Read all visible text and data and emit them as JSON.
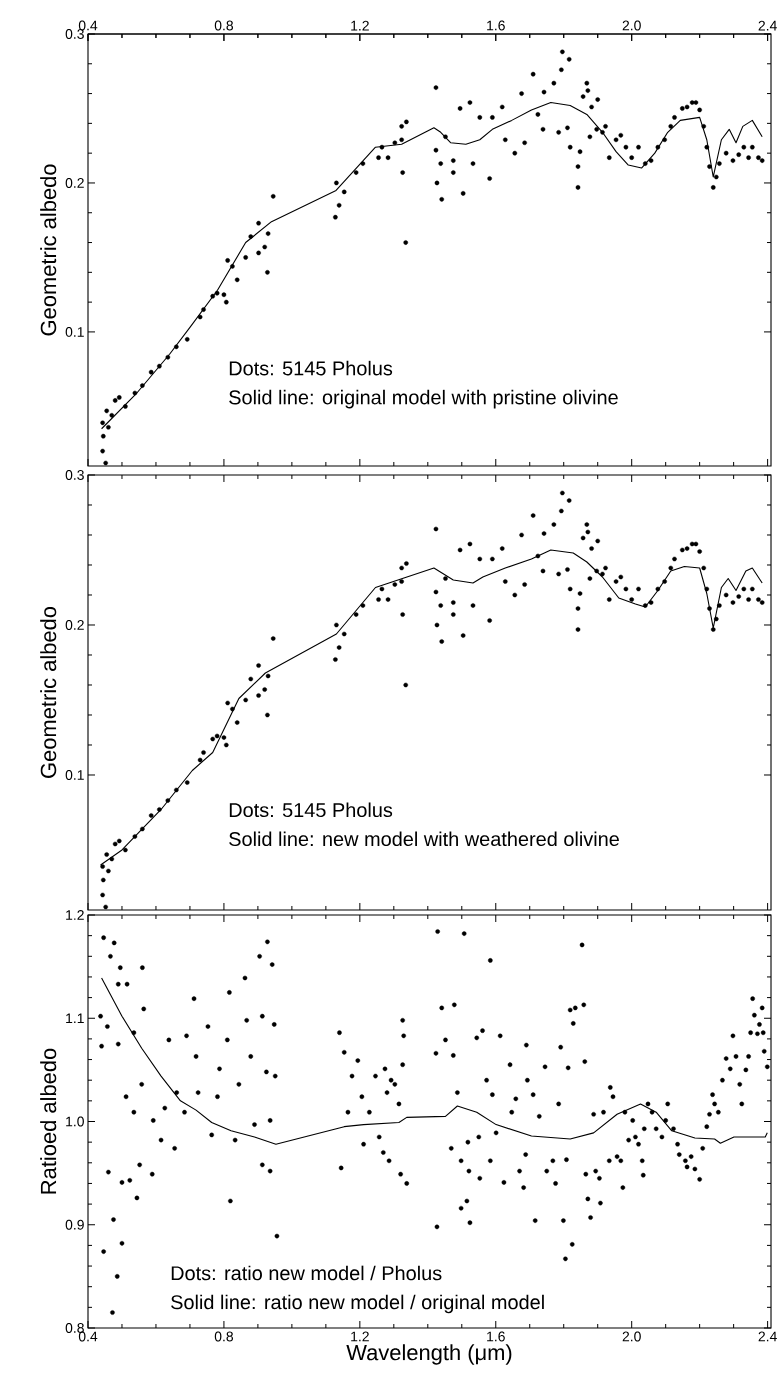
{
  "chart_data": [
    {
      "type": "scatter",
      "ylabel": "Geometric albedo",
      "xlim": [
        0.4,
        2.41
      ],
      "ylim": [
        0.01,
        0.3
      ],
      "x2lim": [
        0.4,
        2.41
      ],
      "x2ticks": [
        0.4,
        0.8,
        1.2,
        1.6,
        {
          "value": 2.0,
          "label": "2.0"
        },
        2.4
      ],
      "yticks": [
        0.1,
        0.2,
        0.3
      ],
      "tick_labels": "y",
      "annotations": [
        "Dots: 5145 Pholus",
        "Solid line: original model with pristine olivine"
      ],
      "series": [
        {
          "type": "scatter",
          "marker": "circle",
          "color": "#000000",
          "x": [
            0.443,
            0.445,
            0.452,
            0.443,
            0.455,
            0.46,
            0.47,
            0.48,
            0.492,
            0.51,
            0.538,
            0.56,
            0.586,
            0.61,
            0.635,
            0.66,
            0.692,
            0.73,
            0.74,
            0.767,
            0.78,
            0.8,
            0.807,
            0.811,
            0.825,
            0.839,
            0.864,
            0.879,
            0.902,
            0.902,
            0.92,
            0.928,
            0.93,
            0.945,
            1.128,
            1.139,
            1.131,
            1.154,
            1.189,
            1.209,
            1.255,
            1.265,
            1.283,
            1.303,
            1.323,
            1.323,
            1.326,
            1.335,
            1.337,
            1.424,
            1.424,
            1.427,
            1.441,
            1.438,
            1.452,
            1.475,
            1.475,
            1.495,
            1.504,
            1.524,
            1.533,
            1.553,
            1.582,
            1.59,
            1.619,
            1.628,
            1.656,
            1.676,
            1.685,
            1.71,
            1.724,
            1.739,
            1.742,
            1.771,
            1.785,
            1.793,
            1.796,
            1.811,
            1.816,
            1.819,
            1.842,
            1.842,
            1.848,
            1.857,
            1.868,
            1.871,
            1.882,
            1.877,
            1.9,
            1.897,
            1.914,
            1.923,
            1.934,
            1.954,
            1.968,
            1.983,
            2.0,
            2.02,
            2.04,
            2.057,
            2.077,
            2.097,
            2.115,
            2.126,
            2.149,
            2.163,
            2.178,
            2.189,
            2.2,
            2.212,
            2.221,
            2.229,
            2.24,
            2.249,
            2.258,
            2.278,
            2.298,
            2.315,
            2.33,
            2.344,
            2.355,
            2.373,
            2.384
          ],
          "values": [
            0.039,
            0.03,
            0.012,
            0.02,
            0.047,
            0.036,
            0.044,
            0.054,
            0.056,
            0.05,
            0.059,
            0.064,
            0.073,
            0.077,
            0.083,
            0.09,
            0.095,
            0.11,
            0.115,
            0.124,
            0.126,
            0.125,
            0.12,
            0.148,
            0.144,
            0.135,
            0.15,
            0.164,
            0.153,
            0.173,
            0.157,
            0.14,
            0.166,
            0.191,
            0.177,
            0.185,
            0.2,
            0.194,
            0.207,
            0.213,
            0.217,
            0.224,
            0.217,
            0.227,
            0.229,
            0.238,
            0.207,
            0.16,
            0.241,
            0.264,
            0.222,
            0.2,
            0.189,
            0.213,
            0.231,
            0.207,
            0.215,
            0.25,
            0.193,
            0.254,
            0.213,
            0.244,
            0.203,
            0.244,
            0.251,
            0.229,
            0.22,
            0.26,
            0.227,
            0.273,
            0.246,
            0.236,
            0.261,
            0.267,
            0.234,
            0.276,
            0.288,
            0.237,
            0.283,
            0.224,
            0.211,
            0.197,
            0.221,
            0.258,
            0.267,
            0.262,
            0.251,
            0.231,
            0.256,
            0.236,
            0.234,
            0.238,
            0.217,
            0.229,
            0.232,
            0.224,
            0.217,
            0.224,
            0.213,
            0.215,
            0.224,
            0.229,
            0.238,
            0.244,
            0.25,
            0.251,
            0.254,
            0.254,
            0.249,
            0.238,
            0.224,
            0.211,
            0.197,
            0.204,
            0.213,
            0.22,
            0.215,
            0.219,
            0.224,
            0.217,
            0.224,
            0.217,
            0.215
          ]
        },
        {
          "type": "line",
          "color": "#000000",
          "x": [
            0.44,
            0.54,
            0.64,
            0.7,
            0.781,
            0.864,
            0.94,
            1.13,
            1.246,
            1.323,
            1.418,
            1.438,
            1.467,
            1.512,
            1.553,
            1.59,
            1.647,
            1.705,
            1.762,
            1.819,
            1.868,
            1.914,
            1.954,
            1.99,
            2.029,
            2.068,
            2.106,
            2.143,
            2.2,
            2.221,
            2.24,
            2.264,
            2.287,
            2.307,
            2.327,
            2.355,
            2.384
          ],
          "values": [
            0.035,
            0.058,
            0.085,
            0.103,
            0.128,
            0.16,
            0.174,
            0.195,
            0.224,
            0.226,
            0.237,
            0.234,
            0.227,
            0.226,
            0.229,
            0.236,
            0.242,
            0.249,
            0.254,
            0.252,
            0.246,
            0.234,
            0.221,
            0.212,
            0.21,
            0.22,
            0.234,
            0.242,
            0.244,
            0.229,
            0.204,
            0.229,
            0.236,
            0.227,
            0.238,
            0.242,
            0.231
          ]
        }
      ]
    },
    {
      "type": "scatter",
      "ylabel": "Geometric albedo",
      "xlim": [
        0.4,
        2.41
      ],
      "ylim": [
        0.01,
        0.3
      ],
      "yticks": [
        0.1,
        0.2,
        0.3
      ],
      "tick_labels": "y",
      "annotations": [
        "Dots: 5145 Pholus",
        "Solid line: new model with weathered olivine"
      ],
      "series": [
        {
          "type": "scatter",
          "marker": "circle",
          "color": "#000000",
          "x": [
            0.443,
            0.445,
            0.452,
            0.443,
            0.455,
            0.46,
            0.47,
            0.48,
            0.492,
            0.51,
            0.538,
            0.56,
            0.586,
            0.61,
            0.635,
            0.66,
            0.692,
            0.73,
            0.74,
            0.767,
            0.78,
            0.8,
            0.807,
            0.811,
            0.825,
            0.839,
            0.864,
            0.879,
            0.902,
            0.902,
            0.92,
            0.928,
            0.93,
            0.945,
            1.128,
            1.139,
            1.131,
            1.154,
            1.189,
            1.209,
            1.255,
            1.265,
            1.283,
            1.303,
            1.323,
            1.323,
            1.326,
            1.335,
            1.337,
            1.424,
            1.424,
            1.427,
            1.441,
            1.438,
            1.452,
            1.475,
            1.475,
            1.495,
            1.504,
            1.524,
            1.533,
            1.553,
            1.582,
            1.59,
            1.619,
            1.628,
            1.656,
            1.676,
            1.685,
            1.71,
            1.724,
            1.739,
            1.742,
            1.771,
            1.785,
            1.793,
            1.796,
            1.811,
            1.816,
            1.819,
            1.842,
            1.842,
            1.848,
            1.857,
            1.868,
            1.871,
            1.882,
            1.877,
            1.9,
            1.897,
            1.914,
            1.923,
            1.934,
            1.954,
            1.968,
            1.983,
            2.0,
            2.02,
            2.04,
            2.057,
            2.077,
            2.097,
            2.115,
            2.126,
            2.149,
            2.163,
            2.178,
            2.189,
            2.2,
            2.212,
            2.221,
            2.229,
            2.24,
            2.249,
            2.258,
            2.278,
            2.298,
            2.315,
            2.33,
            2.344,
            2.355,
            2.373,
            2.384
          ],
          "values": [
            0.039,
            0.03,
            0.012,
            0.02,
            0.047,
            0.036,
            0.044,
            0.054,
            0.056,
            0.05,
            0.059,
            0.064,
            0.073,
            0.077,
            0.083,
            0.09,
            0.095,
            0.11,
            0.115,
            0.124,
            0.126,
            0.125,
            0.12,
            0.148,
            0.144,
            0.135,
            0.15,
            0.164,
            0.153,
            0.173,
            0.157,
            0.14,
            0.166,
            0.191,
            0.177,
            0.185,
            0.2,
            0.194,
            0.207,
            0.213,
            0.217,
            0.224,
            0.217,
            0.227,
            0.229,
            0.238,
            0.207,
            0.16,
            0.241,
            0.264,
            0.222,
            0.2,
            0.189,
            0.213,
            0.231,
            0.207,
            0.215,
            0.25,
            0.193,
            0.254,
            0.213,
            0.244,
            0.203,
            0.244,
            0.251,
            0.229,
            0.22,
            0.26,
            0.227,
            0.273,
            0.246,
            0.236,
            0.261,
            0.267,
            0.234,
            0.276,
            0.288,
            0.237,
            0.283,
            0.224,
            0.211,
            0.197,
            0.221,
            0.258,
            0.267,
            0.262,
            0.251,
            0.231,
            0.256,
            0.236,
            0.234,
            0.238,
            0.217,
            0.229,
            0.232,
            0.224,
            0.217,
            0.224,
            0.213,
            0.215,
            0.224,
            0.229,
            0.238,
            0.244,
            0.25,
            0.251,
            0.254,
            0.254,
            0.249,
            0.238,
            0.224,
            0.211,
            0.197,
            0.204,
            0.213,
            0.22,
            0.215,
            0.219,
            0.224,
            0.217,
            0.224,
            0.217,
            0.215
          ]
        },
        {
          "type": "line",
          "color": "#000000",
          "x": [
            0.437,
            0.5,
            0.615,
            0.707,
            0.767,
            0.844,
            0.922,
            1.131,
            1.246,
            1.418,
            1.475,
            1.533,
            1.562,
            1.628,
            1.705,
            1.762,
            1.828,
            1.868,
            1.914,
            1.962,
            2.011,
            2.04,
            2.077,
            2.115,
            2.155,
            2.2,
            2.221,
            2.24,
            2.264,
            2.284,
            2.307,
            2.336,
            2.355,
            2.384
          ],
          "values": [
            0.04,
            0.05,
            0.077,
            0.103,
            0.115,
            0.151,
            0.168,
            0.194,
            0.225,
            0.238,
            0.23,
            0.228,
            0.232,
            0.238,
            0.244,
            0.25,
            0.248,
            0.242,
            0.232,
            0.218,
            0.214,
            0.212,
            0.223,
            0.236,
            0.239,
            0.238,
            0.221,
            0.198,
            0.225,
            0.231,
            0.223,
            0.236,
            0.238,
            0.228
          ]
        }
      ]
    },
    {
      "type": "scatter",
      "ylabel": "Ratioed albedo",
      "xlabel": "Wavelength (μm)",
      "xlim": [
        0.4,
        2.41
      ],
      "ylim": [
        0.8,
        1.2
      ],
      "xticks": [
        0.4,
        0.8,
        1.2,
        1.6,
        {
          "value": 2.0,
          "label": "2.0"
        },
        2.4
      ],
      "yticks": [
        0.8,
        0.9,
        {
          "value": 1.0,
          "label": "1.0"
        },
        1.1,
        1.2
      ],
      "annotations": [
        "Dots: ratio new model / Pholus",
        "Solid line: ratio new model / original model"
      ],
      "series": [
        {
          "type": "scatter",
          "marker": "circle",
          "color": "#000000",
          "x": [
            0.446,
            0.437,
            0.44,
            0.446,
            0.457,
            0.466,
            0.477,
            0.475,
            0.472,
            0.486,
            0.5,
            0.489,
            0.495,
            0.489,
            0.5,
            0.46,
            0.515,
            0.523,
            0.535,
            0.552,
            0.544,
            0.56,
            0.564,
            0.512,
            0.535,
            0.558,
            0.592,
            0.615,
            0.589,
            0.626,
            0.638,
            0.655,
            0.661,
            0.684,
            0.69,
            0.712,
            0.718,
            0.724,
            0.753,
            0.764,
            0.781,
            0.787,
            0.816,
            0.819,
            0.81,
            0.833,
            0.844,
            0.862,
            0.867,
            0.879,
            0.89,
            0.905,
            0.913,
            0.928,
            0.942,
            0.936,
            0.913,
            0.948,
            0.951,
            0.956,
            0.936,
            0.925,
            1.14,
            1.145,
            1.154,
            1.165,
            1.177,
            1.194,
            1.206,
            1.211,
            1.228,
            1.246,
            1.257,
            1.274,
            1.286,
            1.303,
            1.269,
            1.28,
            1.292,
            1.315,
            1.326,
            1.326,
            1.329,
            1.32,
            1.338,
            1.429,
            1.427,
            1.441,
            1.452,
            1.424,
            1.469,
            1.475,
            1.478,
            1.487,
            1.498,
            1.498,
            1.507,
            1.515,
            1.521,
            1.524,
            1.518,
            1.544,
            1.55,
            1.553,
            1.561,
            1.573,
            1.584,
            1.584,
            1.59,
            1.601,
            1.613,
            1.624,
            1.642,
            1.647,
            1.659,
            1.67,
            1.682,
            1.688,
            1.69,
            1.693,
            1.71,
            1.716,
            1.728,
            1.745,
            1.75,
            1.768,
            1.776,
            1.785,
            1.791,
            1.799,
            1.805,
            1.808,
            1.813,
            1.819,
            1.825,
            1.828,
            1.834,
            1.854,
            1.859,
            1.862,
            1.865,
            1.871,
            1.879,
            1.888,
            1.894,
            1.905,
            1.908,
            1.917,
            1.934,
            1.937,
            1.945,
            1.957,
            1.968,
            1.974,
            1.98,
            1.991,
            2.003,
            2.011,
            2.02,
            2.031,
            2.034,
            2.037,
            2.048,
            2.06,
            2.072,
            2.089,
            2.1,
            2.106,
            2.123,
            2.135,
            2.14,
            2.158,
            2.163,
            2.175,
            2.186,
            2.2,
            2.209,
            2.221,
            2.229,
            2.238,
            2.244,
            2.255,
            2.267,
            2.278,
            2.29,
            2.298,
            2.307,
            2.318,
            2.324,
            2.336,
            2.344,
            2.35,
            2.356,
            2.361,
            2.37,
            2.376,
            2.384,
            2.387,
            2.39,
            2.399
          ],
          "values": [
            1.178,
            1.102,
            1.073,
            0.874,
            1.092,
            1.16,
            1.173,
            0.905,
            0.815,
            0.85,
            0.882,
            1.133,
            1.149,
            1.075,
            0.941,
            0.951,
            1.133,
            0.943,
            1.086,
            0.958,
            0.926,
            1.149,
            1.109,
            1.024,
            1.009,
            1.036,
            1.001,
            0.982,
            0.949,
            1.013,
            1.079,
            0.974,
            1.028,
            1.009,
            1.083,
            1.119,
            1.063,
            1.028,
            1.092,
            0.987,
            1.024,
            1.051,
            1.125,
            0.923,
            1.079,
            0.982,
            1.036,
            1.139,
            1.098,
            1.063,
            0.997,
            1.16,
            1.102,
            1.174,
            1.152,
            0.952,
            0.958,
            1.094,
            1.044,
            0.889,
            1.001,
            1.048,
            1.086,
            0.955,
            1.067,
            1.009,
            1.044,
            1.059,
            1.024,
            0.978,
            1.009,
            1.044,
            0.985,
            1.051,
            0.962,
            1.036,
            0.97,
            1.028,
            1.04,
            1.017,
            1.055,
            1.098,
            1.083,
            0.949,
            0.94,
            1.184,
            0.898,
            1.11,
            1.079,
            1.066,
            0.974,
            1.064,
            1.113,
            1.028,
            0.962,
            0.916,
            1.182,
            0.923,
            0.952,
            0.902,
            0.98,
            1.081,
            0.985,
            0.945,
            1.088,
            1.04,
            0.962,
            1.156,
            1.026,
            0.989,
            1.083,
            0.941,
            1.055,
            1.009,
            1.022,
            0.952,
            0.936,
            0.968,
            1.074,
            1.04,
            1.026,
            0.904,
            1.005,
            1.053,
            0.952,
            0.962,
            0.94,
            1.017,
            1.072,
            0.904,
            0.867,
            0.963,
            1.052,
            1.108,
            0.881,
            1.095,
            1.11,
            1.171,
            1.113,
            1.058,
            0.949,
            0.925,
            0.907,
            1.007,
            0.952,
            0.945,
            0.921,
            1.009,
            0.962,
            1.033,
            1.024,
            0.966,
            0.962,
            0.936,
            1.009,
            0.982,
            1.001,
            0.985,
            0.978,
            0.962,
            0.948,
            0.993,
            1.017,
            1.009,
            0.993,
            0.985,
            1.001,
            1.017,
            0.993,
            0.978,
            0.968,
            0.962,
            0.956,
            0.966,
            0.954,
            0.944,
            0.974,
            0.995,
            1.007,
            1.026,
            1.017,
            1.009,
            1.04,
            1.061,
            1.051,
            1.083,
            1.063,
            1.036,
            1.017,
            1.05,
            1.063,
            1.086,
            1.119,
            1.103,
            1.085,
            1.094,
            1.11,
            1.086,
            1.068,
            1.053
          ]
        },
        {
          "type": "line",
          "color": "#000000",
          "x": [
            0.44,
            0.5,
            0.558,
            0.615,
            0.672,
            0.718,
            0.764,
            0.821,
            0.89,
            0.953,
            1.154,
            1.211,
            1.315,
            1.338,
            1.452,
            1.487,
            1.544,
            1.601,
            1.705,
            1.819,
            1.888,
            1.957,
            2.026,
            2.072,
            2.118,
            2.186,
            2.244,
            2.261,
            2.301,
            2.393,
            2.399
          ],
          "values": [
            1.139,
            1.102,
            1.071,
            1.044,
            1.02,
            1.011,
            0.999,
            0.991,
            0.985,
            0.978,
            0.995,
            0.997,
            0.999,
            1.004,
            1.005,
            1.015,
            1.009,
            0.997,
            0.986,
            0.983,
            0.989,
            1.007,
            1.017,
            1.009,
            0.991,
            0.984,
            0.983,
            0.979,
            0.985,
            0.985,
            0.989
          ]
        }
      ]
    }
  ]
}
